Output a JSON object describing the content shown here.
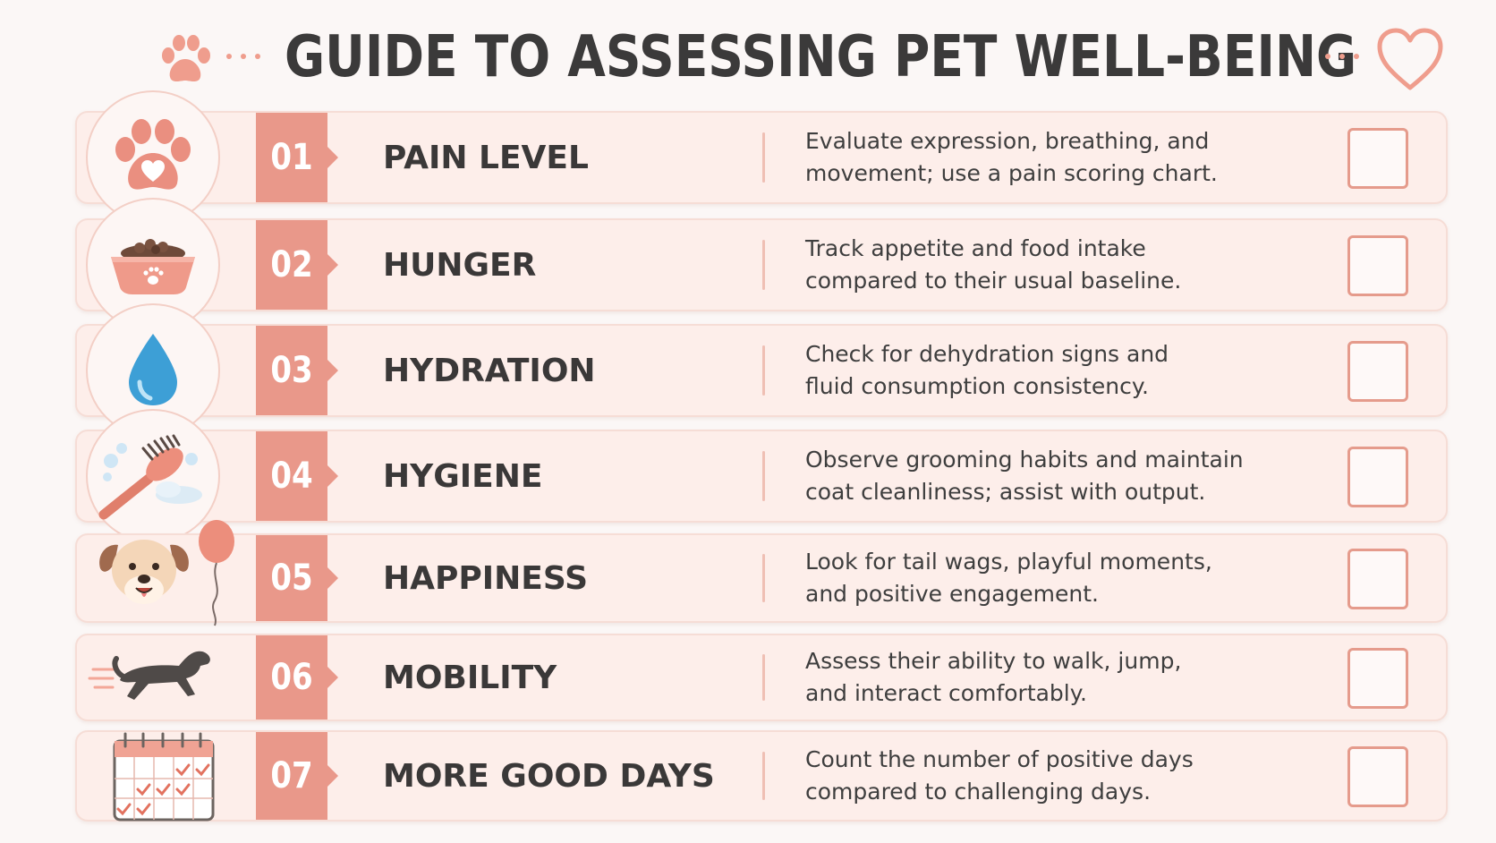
{
  "title": "GUIDE TO ASSESSING PET WELL-BEING",
  "colors": {
    "accent": "#e9988a",
    "row_background": "#fdeeea",
    "checkbox_border": "#e59b8c",
    "text": "#3a3838"
  },
  "header_icons": [
    "paw-icon",
    "heart-outline-icon"
  ],
  "items": [
    {
      "number": "01",
      "name": "PAIN LEVEL",
      "desc_line1": "Evaluate expression, breathing, and",
      "desc_line2": "movement; use a pain scoring chart.",
      "icon": "paw-heart-icon",
      "checked": false
    },
    {
      "number": "02",
      "name": "HUNGER",
      "desc_line1": "Track appetite and food intake",
      "desc_line2": "compared to their usual baseline.",
      "icon": "food-bowl-icon",
      "checked": false
    },
    {
      "number": "03",
      "name": "HYDRATION",
      "desc_line1": "Check for dehydration signs and",
      "desc_line2": "fluid consumption consistency.",
      "icon": "water-drop-icon",
      "checked": false
    },
    {
      "number": "04",
      "name": "HYGIENE",
      "desc_line1": "Observe grooming habits and maintain",
      "desc_line2": "coat cleanliness; assist with output.",
      "icon": "grooming-brush-icon",
      "checked": false
    },
    {
      "number": "05",
      "name": "HAPPINESS",
      "desc_line1": "Look for tail wags, playful moments,",
      "desc_line2": "and positive engagement.",
      "icon": "happy-dog-balloon-icon",
      "checked": false
    },
    {
      "number": "06",
      "name": "MOBILITY",
      "desc_line1": "Assess their ability to walk, jump,",
      "desc_line2": "and interact comfortably.",
      "icon": "running-dog-icon",
      "checked": false
    },
    {
      "number": "07",
      "name": "MORE GOOD DAYS",
      "desc_line1": "Count the number of positive days",
      "desc_line2": "compared to challenging days.",
      "icon": "calendar-checks-icon",
      "checked": false
    }
  ]
}
